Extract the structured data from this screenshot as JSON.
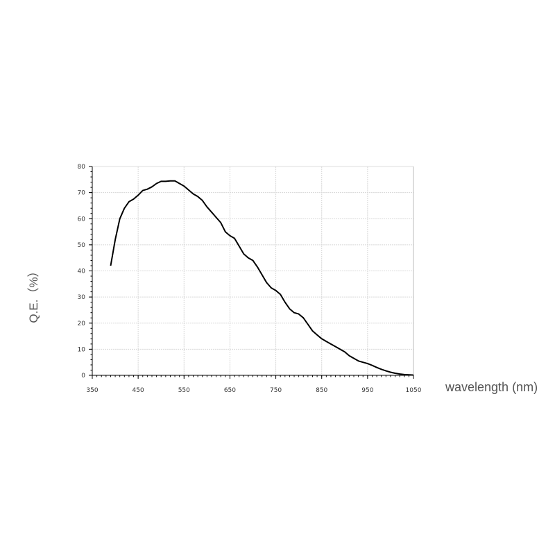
{
  "chart_data": {
    "type": "line",
    "title": "",
    "xlabel": "wavelength (nm)",
    "ylabel": "Q.E.（%）",
    "xlim": [
      350,
      1050
    ],
    "ylim": [
      0,
      80
    ],
    "xticks": [
      "350",
      "450",
      "550",
      "650",
      "750",
      "850",
      "950",
      "1050"
    ],
    "yticks": [
      "0",
      "10",
      "20",
      "30",
      "40",
      "50",
      "60",
      "70",
      "80"
    ],
    "grid": true,
    "line_color": "#000000",
    "series": [
      {
        "x": [
          390,
          400,
          410,
          420,
          430,
          440,
          450,
          460,
          470,
          480,
          490,
          500,
          510,
          520,
          530,
          540,
          550,
          560,
          570,
          580,
          590,
          600,
          610,
          620,
          630,
          640,
          650,
          660,
          670,
          680,
          690,
          700,
          710,
          720,
          730,
          740,
          750,
          760,
          770,
          780,
          790,
          800,
          810,
          820,
          830,
          840,
          850,
          860,
          870,
          880,
          890,
          900,
          910,
          920,
          930,
          940,
          950,
          960,
          970,
          980,
          990,
          1000,
          1010,
          1020,
          1030,
          1040,
          1050
        ],
        "y": [
          42,
          52,
          60,
          64,
          66.5,
          67.5,
          69,
          70.8,
          71.3,
          72.2,
          73.5,
          74.3,
          74.3,
          74.5,
          74.5,
          73.5,
          72.5,
          71,
          69.5,
          68.5,
          67,
          64.5,
          62.5,
          60.5,
          58.5,
          55,
          53.5,
          52.5,
          49.5,
          46.5,
          45,
          44,
          41.5,
          38.5,
          35.5,
          33.5,
          32.5,
          31,
          28,
          25.5,
          24,
          23.5,
          22,
          19.5,
          17,
          15.5,
          14,
          13,
          12,
          11,
          10,
          9,
          7.5,
          6.5,
          5.5,
          5,
          4.5,
          3.8,
          3,
          2.3,
          1.7,
          1.2,
          0.8,
          0.5,
          0.3,
          0.2,
          0.1
        ]
      }
    ]
  }
}
